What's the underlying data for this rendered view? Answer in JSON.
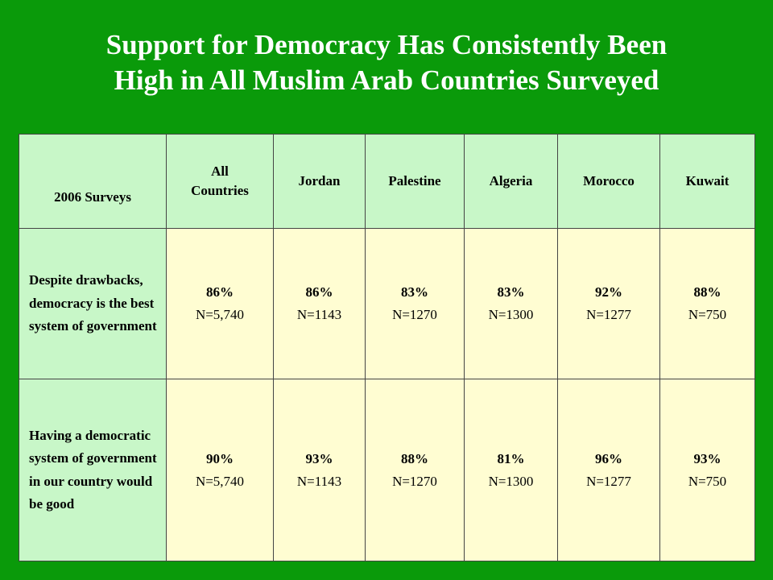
{
  "title_line1": "Support for Democracy Has Consistently Been",
  "title_line2": "High in All Muslim Arab Countries Surveyed",
  "table": {
    "corner": "2006 Surveys",
    "columns": [
      "All\nCountries",
      "Jordan",
      "Palestine",
      "Algeria",
      "Morocco",
      "Kuwait"
    ],
    "rows": [
      {
        "label": "Despite drawbacks, democracy is the best system of government",
        "cells": [
          {
            "pct": "86%",
            "n": "N=5,740"
          },
          {
            "pct": "86%",
            "n": "N=1143"
          },
          {
            "pct": "83%",
            "n": "N=1270"
          },
          {
            "pct": "83%",
            "n": "N=1300"
          },
          {
            "pct": "92%",
            "n": "N=1277"
          },
          {
            "pct": "88%",
            "n": "N=750"
          }
        ]
      },
      {
        "label": "Having a democratic system of government in our country would be good",
        "cells": [
          {
            "pct": "90%",
            "n": "N=5,740"
          },
          {
            "pct": "93%",
            "n": "N=1143"
          },
          {
            "pct": "88%",
            "n": "N=1270"
          },
          {
            "pct": "81%",
            "n": "N=1300"
          },
          {
            "pct": "96%",
            "n": "N=1277"
          },
          {
            "pct": "93%",
            "n": "N=750"
          }
        ]
      }
    ]
  },
  "colors": {
    "background": "#0a9a0a",
    "header_fill": "#c8f7c8",
    "cell_fill": "#fffdd2",
    "title_text": "#ffffff"
  }
}
